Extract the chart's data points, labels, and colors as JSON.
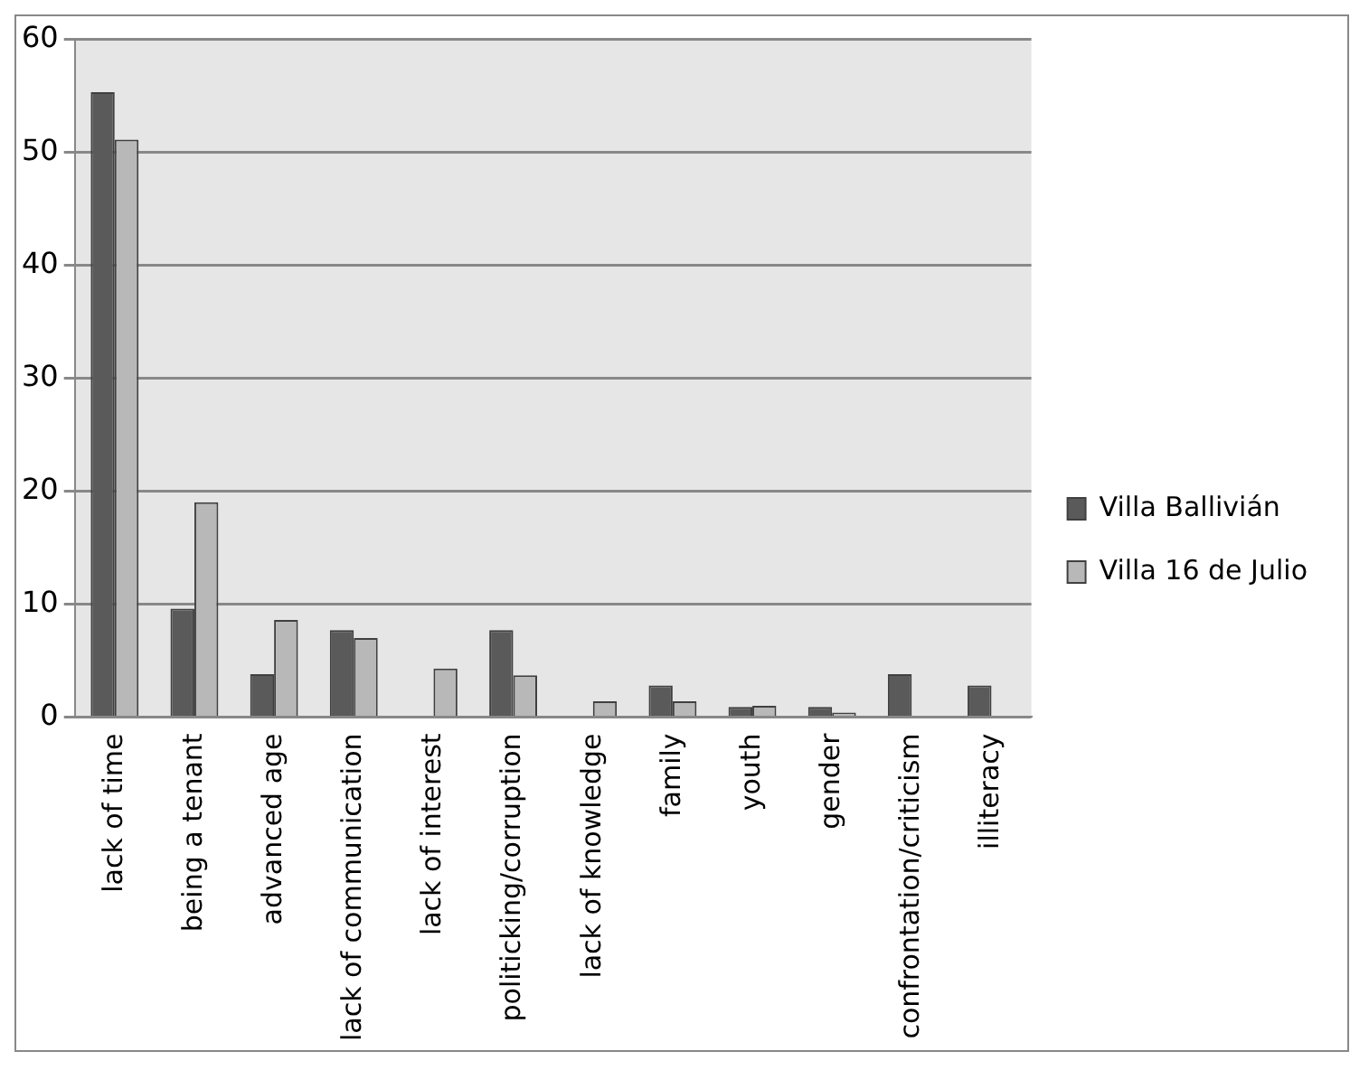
{
  "chart_data": {
    "type": "bar",
    "categories": [
      "lack of time",
      "being a tenant",
      "advanced age",
      "lack of communication",
      "lack of interest",
      "politicking/corruption",
      "lack of knowledge",
      "family",
      "youth",
      "gender",
      "confrontation/criticism",
      "illiteracy"
    ],
    "series": [
      {
        "name": "Villa Ballivián",
        "color": "#5a5a5a",
        "values": [
          55.3,
          9.6,
          3.8,
          7.7,
          0,
          7.7,
          0,
          2.8,
          0.9,
          0.9,
          3.8,
          2.8
        ]
      },
      {
        "name": "Villa 16 de Julio",
        "color": "#b8b8b8",
        "values": [
          51.1,
          19,
          8.6,
          7,
          4.3,
          3.7,
          1.4,
          1.4,
          1,
          0.4,
          0,
          0
        ]
      }
    ],
    "ylim": [
      0,
      60
    ],
    "yticks": [
      0,
      10,
      20,
      30,
      40,
      50,
      60
    ],
    "grid": "y",
    "legend": "right"
  }
}
